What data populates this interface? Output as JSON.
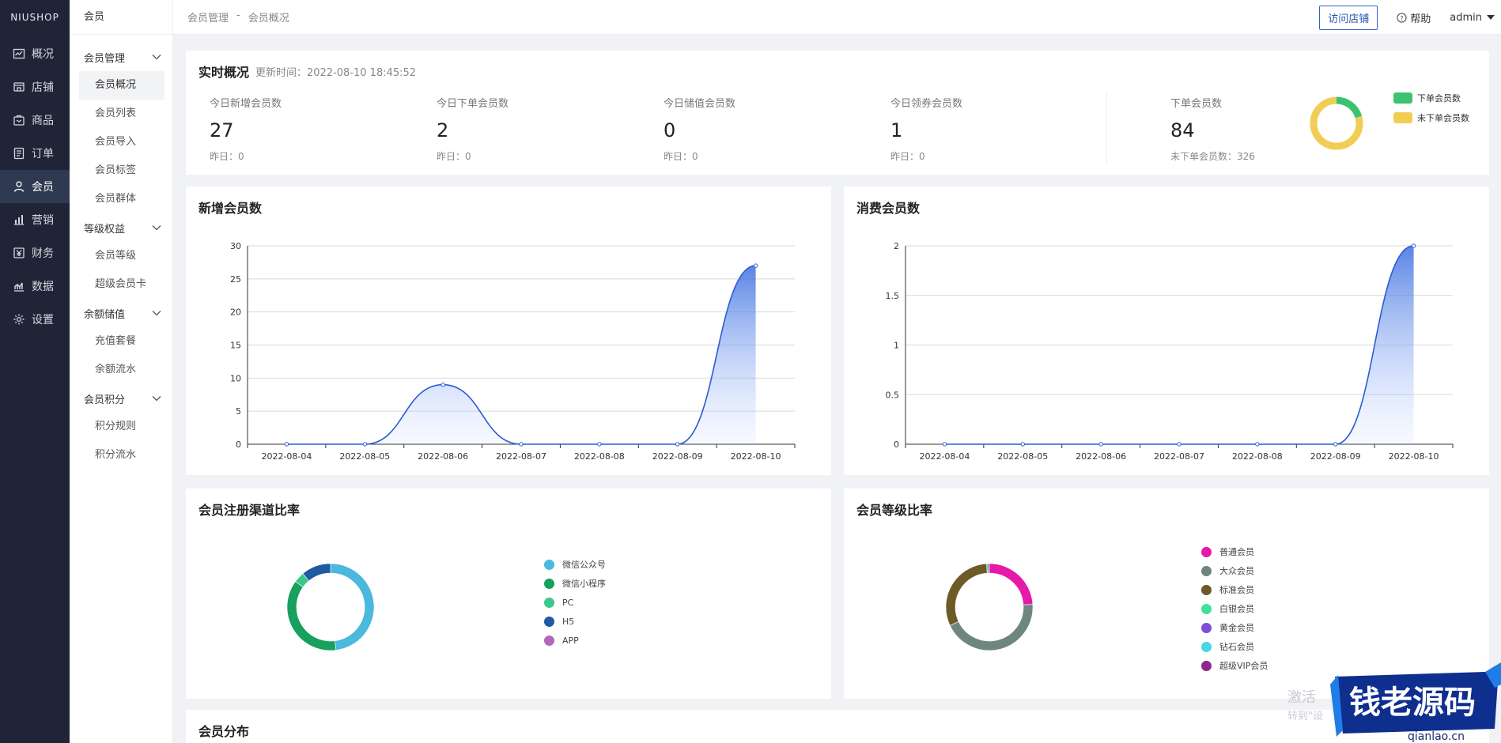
{
  "nav": {
    "brand": "NIUSHOP",
    "items": [
      {
        "label": "概况",
        "icon": "chart-icon"
      },
      {
        "label": "店铺",
        "icon": "store-icon"
      },
      {
        "label": "商品",
        "icon": "goods-icon"
      },
      {
        "label": "订单",
        "icon": "order-icon"
      },
      {
        "label": "会员",
        "icon": "member-icon",
        "active": true
      },
      {
        "label": "营销",
        "icon": "marketing-icon"
      },
      {
        "label": "财务",
        "icon": "finance-icon"
      },
      {
        "label": "数据",
        "icon": "data-icon"
      },
      {
        "label": "设置",
        "icon": "settings-icon"
      }
    ]
  },
  "subnav": {
    "title": "会员",
    "groups": [
      {
        "label": "会员管理",
        "items": [
          "会员概况",
          "会员列表",
          "会员导入",
          "会员标签",
          "会员群体"
        ]
      },
      {
        "label": "等级权益",
        "items": [
          "会员等级",
          "超级会员卡"
        ]
      },
      {
        "label": "余额储值",
        "items": [
          "充值套餐",
          "余额流水"
        ]
      },
      {
        "label": "会员积分",
        "items": [
          "积分规则",
          "积分流水"
        ]
      }
    ]
  },
  "header": {
    "breadcrumb": [
      "会员管理",
      "-",
      "会员概况"
    ],
    "visit_store": "访问店铺",
    "help": "帮助",
    "user": "admin"
  },
  "realtime": {
    "title": "实时概况",
    "update_time": "更新时间：2022-08-10 18:45:52",
    "stats": [
      {
        "label": "今日新增会员数",
        "value": "27",
        "prev": "昨日：0"
      },
      {
        "label": "今日下单会员数",
        "value": "2",
        "prev": "昨日：0"
      },
      {
        "label": "今日储值会员数",
        "value": "0",
        "prev": "昨日：0"
      },
      {
        "label": "今日领券会员数",
        "value": "1",
        "prev": "昨日：0"
      },
      {
        "label": "下单会员数",
        "value": "84",
        "prev": "未下单会员数：326"
      }
    ],
    "donut": {
      "ordered": 84,
      "not_ordered": 326,
      "colors": [
        "#3cc36f",
        "#f2cd55"
      ]
    },
    "legend": [
      "下单会员数",
      "未下单会员数"
    ]
  },
  "new_members_chart": {
    "title": "新增会员数",
    "chart_data": {
      "type": "line",
      "x": [
        "2022-08-04",
        "2022-08-05",
        "2022-08-06",
        "2022-08-07",
        "2022-08-08",
        "2022-08-09",
        "2022-08-10"
      ],
      "values": [
        0,
        0,
        9,
        0,
        0,
        0,
        27
      ],
      "ylim": [
        0,
        30
      ],
      "yticks": [
        0,
        5,
        10,
        15,
        20,
        25,
        30
      ]
    }
  },
  "consume_members_chart": {
    "title": "消费会员数",
    "chart_data": {
      "type": "line",
      "x": [
        "2022-08-04",
        "2022-08-05",
        "2022-08-06",
        "2022-08-07",
        "2022-08-08",
        "2022-08-09",
        "2022-08-10"
      ],
      "values": [
        0,
        0,
        0,
        0,
        0,
        0,
        2
      ],
      "ylim": [
        0,
        2
      ],
      "yticks": [
        0,
        0.5,
        1,
        1.5,
        2
      ]
    }
  },
  "register_channel": {
    "title": "会员注册渠道比率",
    "chart_data": {
      "type": "pie",
      "labels": [
        "微信公众号",
        "微信小程序",
        "PC",
        "H5",
        "APP"
      ],
      "values": [
        48,
        37,
        4,
        11,
        0
      ],
      "colors": [
        "#4bb8dd",
        "#17a05e",
        "#3dc78a",
        "#1f5aa3",
        "#b467b8"
      ]
    }
  },
  "member_level": {
    "title": "会员等级比率",
    "chart_data": {
      "type": "pie",
      "labels": [
        "普通会员",
        "大众会员",
        "标准会员",
        "白银会员",
        "黄金会员",
        "钻石会员",
        "超级VIP会员"
      ],
      "values": [
        24,
        44,
        31,
        0.5,
        0,
        0,
        0.5
      ],
      "colors": [
        "#e61aa8",
        "#6f8680",
        "#6e5a26",
        "#3fe0a0",
        "#7c4fd6",
        "#46d6e6",
        "#8c2a8c"
      ]
    }
  },
  "distribution": {
    "title": "会员分布"
  },
  "watermark": {
    "line1": "激活",
    "line2": "转到\"设",
    "badge_text": "钱老源码",
    "badge_url": "qianlao.cn"
  }
}
